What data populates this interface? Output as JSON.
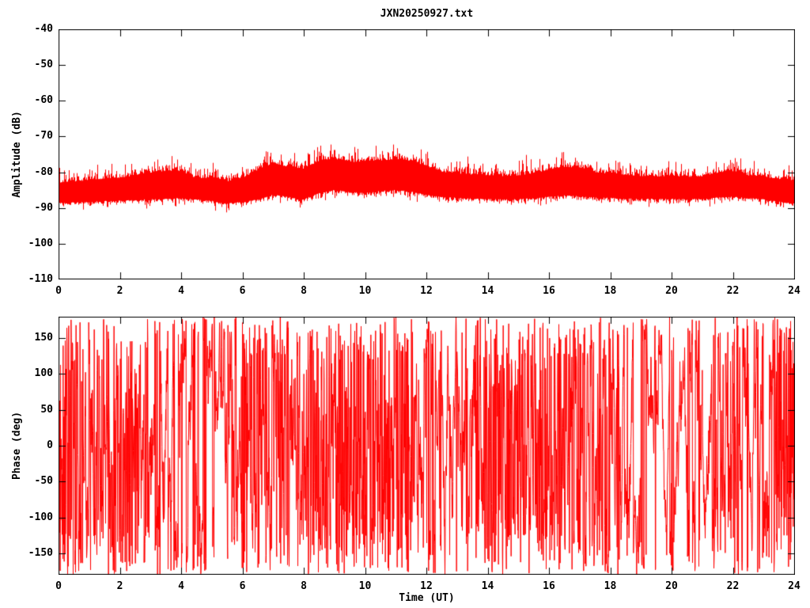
{
  "title": "JXN20250927.txt",
  "colors": {
    "trace": "#ff0000",
    "axis": "#000000",
    "background": "#ffffff"
  },
  "chart_data": [
    {
      "id": "amplitude",
      "type": "line",
      "title": "JXN20250927.txt",
      "ylabel": "Amplitude (dB)",
      "xlabel": "",
      "xlim": [
        0,
        24
      ],
      "ylim": [
        -110,
        -40
      ],
      "xticks": [
        0,
        2,
        4,
        6,
        8,
        10,
        12,
        14,
        16,
        18,
        20,
        22,
        24
      ],
      "yticks": [
        -110,
        -100,
        -90,
        -80,
        -70,
        -60,
        -50,
        -40
      ],
      "grid": false,
      "legend": null,
      "line_color": "#ff0000",
      "description": "Dense noisy amplitude trace forming a solid band; envelope sampled every 0.5 h",
      "envelope": {
        "t": [
          0,
          0.5,
          1,
          1.5,
          2,
          2.5,
          3,
          3.5,
          4,
          4.5,
          5,
          5.5,
          6,
          6.5,
          7,
          7.5,
          8,
          8.5,
          9,
          9.5,
          10,
          10.5,
          11,
          11.5,
          12,
          12.5,
          13,
          13.5,
          14,
          14.5,
          15,
          15.5,
          16,
          16.5,
          17,
          17.5,
          18,
          18.5,
          19,
          19.5,
          20,
          20.5,
          21,
          21.5,
          22,
          22.5,
          23,
          23.5,
          24
        ],
        "band_top_db": [
          -83.0,
          -82.7,
          -82.3,
          -81.9,
          -81.6,
          -80.9,
          -80.2,
          -79.6,
          -79.8,
          -81.9,
          -81.5,
          -82.6,
          -81.6,
          -79.4,
          -77.4,
          -78.7,
          -79.0,
          -76.8,
          -76.3,
          -77.2,
          -77.0,
          -76.7,
          -76.4,
          -76.8,
          -78.4,
          -79.9,
          -80.4,
          -80.7,
          -80.9,
          -81.1,
          -81.0,
          -80.3,
          -79.3,
          -78.5,
          -78.9,
          -80.0,
          -80.5,
          -80.9,
          -81.1,
          -81.2,
          -81.1,
          -81.3,
          -81.2,
          -80.2,
          -79.8,
          -80.9,
          -81.3,
          -82.0,
          -82.4
        ],
        "band_bottom_db": [
          -88.5,
          -88.4,
          -88.2,
          -88.0,
          -87.9,
          -87.7,
          -87.5,
          -87.3,
          -87.2,
          -87.6,
          -88.0,
          -88.7,
          -88.2,
          -87.5,
          -86.2,
          -86.9,
          -87.4,
          -85.8,
          -84.9,
          -85.5,
          -85.7,
          -85.2,
          -84.9,
          -85.3,
          -86.3,
          -86.9,
          -87.1,
          -87.2,
          -87.4,
          -87.5,
          -87.5,
          -87.2,
          -86.8,
          -86.4,
          -86.7,
          -87.0,
          -87.1,
          -87.3,
          -87.4,
          -87.4,
          -87.4,
          -87.5,
          -87.4,
          -87.0,
          -86.8,
          -87.2,
          -87.5,
          -88.2,
          -88.6
        ]
      },
      "peak_spikes": [
        [
          6.8,
          -74.3
        ],
        [
          8.85,
          -74.0
        ],
        [
          11.2,
          -75.2
        ],
        [
          13.35,
          -75.6
        ],
        [
          15.7,
          -76.3
        ],
        [
          16.9,
          -76.8
        ],
        [
          21.9,
          -77.8
        ]
      ]
    },
    {
      "id": "phase",
      "type": "line",
      "ylabel": "Phase (deg)",
      "xlabel": "Time (UT)",
      "xlim": [
        0,
        24
      ],
      "ylim": [
        -180,
        180
      ],
      "xticks": [
        0,
        2,
        4,
        6,
        8,
        10,
        12,
        14,
        16,
        18,
        20,
        22,
        24
      ],
      "yticks": [
        -150,
        -100,
        -50,
        0,
        50,
        100,
        150
      ],
      "grid": false,
      "legend": null,
      "line_color": "#ff0000",
      "description": "Rapidly wrapping phase trace filling -180..180; wrap activity level (0-1) sampled every 0.5 h",
      "activity": {
        "t": [
          0,
          0.5,
          1,
          1.5,
          2,
          2.5,
          3,
          3.5,
          4,
          4.5,
          5,
          5.5,
          6,
          6.5,
          7,
          7.5,
          8,
          8.5,
          9,
          9.5,
          10,
          10.5,
          11,
          11.5,
          12,
          12.5,
          13,
          13.5,
          14,
          14.5,
          15,
          15.5,
          16,
          16.5,
          17,
          17.5,
          18,
          18.5,
          19,
          19.5,
          20,
          20.5,
          21,
          21.5,
          22,
          22.5,
          23,
          23.5,
          24
        ],
        "level": [
          0.95,
          0.6,
          0.55,
          0.6,
          0.75,
          0.8,
          0.5,
          0.45,
          0.4,
          0.38,
          0.35,
          0.5,
          0.6,
          0.7,
          0.65,
          0.55,
          0.6,
          0.75,
          0.8,
          0.75,
          0.85,
          0.9,
          0.85,
          0.75,
          0.55,
          0.5,
          0.45,
          0.7,
          0.8,
          0.75,
          0.85,
          0.9,
          0.8,
          0.65,
          0.55,
          0.5,
          0.6,
          0.45,
          0.4,
          0.35,
          0.4,
          0.45,
          0.42,
          0.55,
          0.6,
          0.45,
          0.4,
          0.75,
          0.9
        ]
      }
    }
  ]
}
